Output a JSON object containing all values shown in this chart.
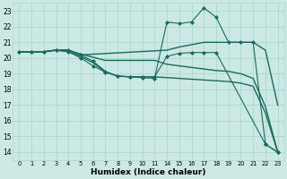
{
  "xlabel": "Humidex (Indice chaleur)",
  "background_color": "#cce8e4",
  "grid_color": "#aad8d0",
  "line_color": "#1a6b5a",
  "ylim": [
    13.5,
    23.5
  ],
  "yticks": [
    14,
    15,
    16,
    17,
    18,
    19,
    20,
    21,
    22,
    23
  ],
  "xtick_labels": [
    "0",
    "1",
    "2",
    "3",
    "4",
    "5",
    "6",
    "7",
    "8",
    "9",
    "10",
    "11",
    "14",
    "15",
    "16",
    "17",
    "18",
    "19",
    "20",
    "21",
    "22",
    "23"
  ],
  "series": [
    {
      "xi": [
        0,
        1,
        2,
        3,
        4,
        5,
        6,
        7,
        8,
        9,
        10,
        11,
        12,
        13,
        14,
        15,
        16,
        17,
        18,
        19,
        20,
        21
      ],
      "y": [
        20.4,
        20.4,
        20.4,
        20.5,
        20.5,
        20.25,
        20.05,
        19.85,
        19.85,
        19.85,
        19.85,
        19.85,
        19.6,
        19.5,
        19.4,
        19.3,
        19.2,
        19.15,
        19.0,
        18.7,
        16.9,
        14.0
      ],
      "style": "-",
      "marker": null,
      "lw": 1.0
    },
    {
      "xi": [
        0,
        1,
        2,
        3,
        4,
        5,
        6,
        7,
        8,
        9,
        10,
        11,
        12,
        13,
        14,
        15,
        16,
        17,
        18,
        19,
        20,
        21
      ],
      "y": [
        20.4,
        20.4,
        20.4,
        20.5,
        20.4,
        20.1,
        19.7,
        19.1,
        18.85,
        18.8,
        18.8,
        18.8,
        18.75,
        18.7,
        18.65,
        18.6,
        18.55,
        18.5,
        18.4,
        18.2,
        16.5,
        14.0
      ],
      "style": "-",
      "marker": null,
      "lw": 1.0
    },
    {
      "xi": [
        0,
        1,
        2,
        3,
        4,
        5,
        12,
        13,
        14,
        15,
        19,
        20,
        21
      ],
      "y": [
        20.4,
        20.4,
        20.4,
        20.5,
        20.5,
        20.2,
        20.5,
        20.7,
        20.85,
        21.0,
        21.0,
        20.5,
        17.0
      ],
      "style": "-",
      "marker": null,
      "lw": 1.0
    },
    {
      "xi": [
        0,
        1,
        2,
        3,
        4,
        5,
        6,
        7,
        8,
        9,
        10,
        11,
        12,
        13,
        14,
        15,
        16,
        20,
        21
      ],
      "y": [
        20.4,
        20.4,
        20.4,
        20.5,
        20.4,
        20.0,
        19.5,
        19.1,
        18.85,
        18.8,
        18.8,
        18.8,
        20.1,
        20.3,
        20.35,
        20.35,
        20.35,
        14.5,
        14.0
      ],
      "style": "-",
      "marker": "D",
      "lw": 0.8,
      "ms": 2.0
    },
    {
      "xi": [
        0,
        1,
        2,
        3,
        4,
        5,
        6,
        7,
        8,
        9,
        10,
        11,
        12,
        13,
        14,
        15,
        16,
        17,
        18,
        19,
        20,
        21
      ],
      "y": [
        20.4,
        20.4,
        20.4,
        20.5,
        20.5,
        20.2,
        19.8,
        19.15,
        18.85,
        18.8,
        18.75,
        18.7,
        22.3,
        22.2,
        22.3,
        23.2,
        22.6,
        21.0,
        21.0,
        21.0,
        14.5,
        14.0
      ],
      "style": "-",
      "marker": "D",
      "lw": 0.8,
      "ms": 2.0
    }
  ]
}
